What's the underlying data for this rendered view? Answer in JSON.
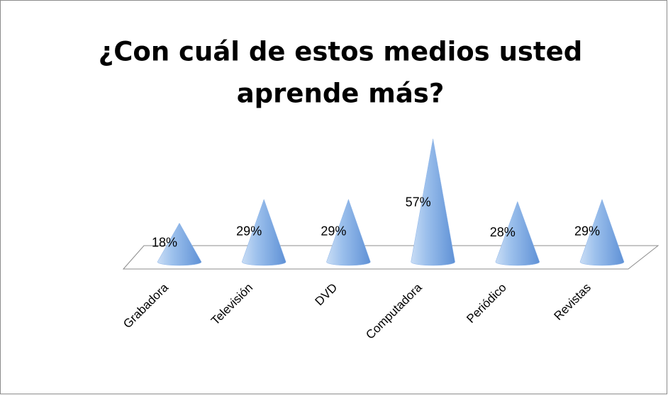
{
  "chart_data": {
    "type": "cone",
    "title": [
      "¿Con cuál de estos medios usted",
      "aprende más?"
    ],
    "categories": [
      "Grabadora",
      "Televisión",
      "DVD",
      "Computadora",
      "Periódico",
      "Revistas"
    ],
    "values": [
      18,
      29,
      29,
      57,
      28,
      29
    ],
    "value_labels": [
      "18%",
      "29%",
      "29%",
      "57%",
      "28%",
      "29%"
    ],
    "color": "#8db4e8"
  }
}
